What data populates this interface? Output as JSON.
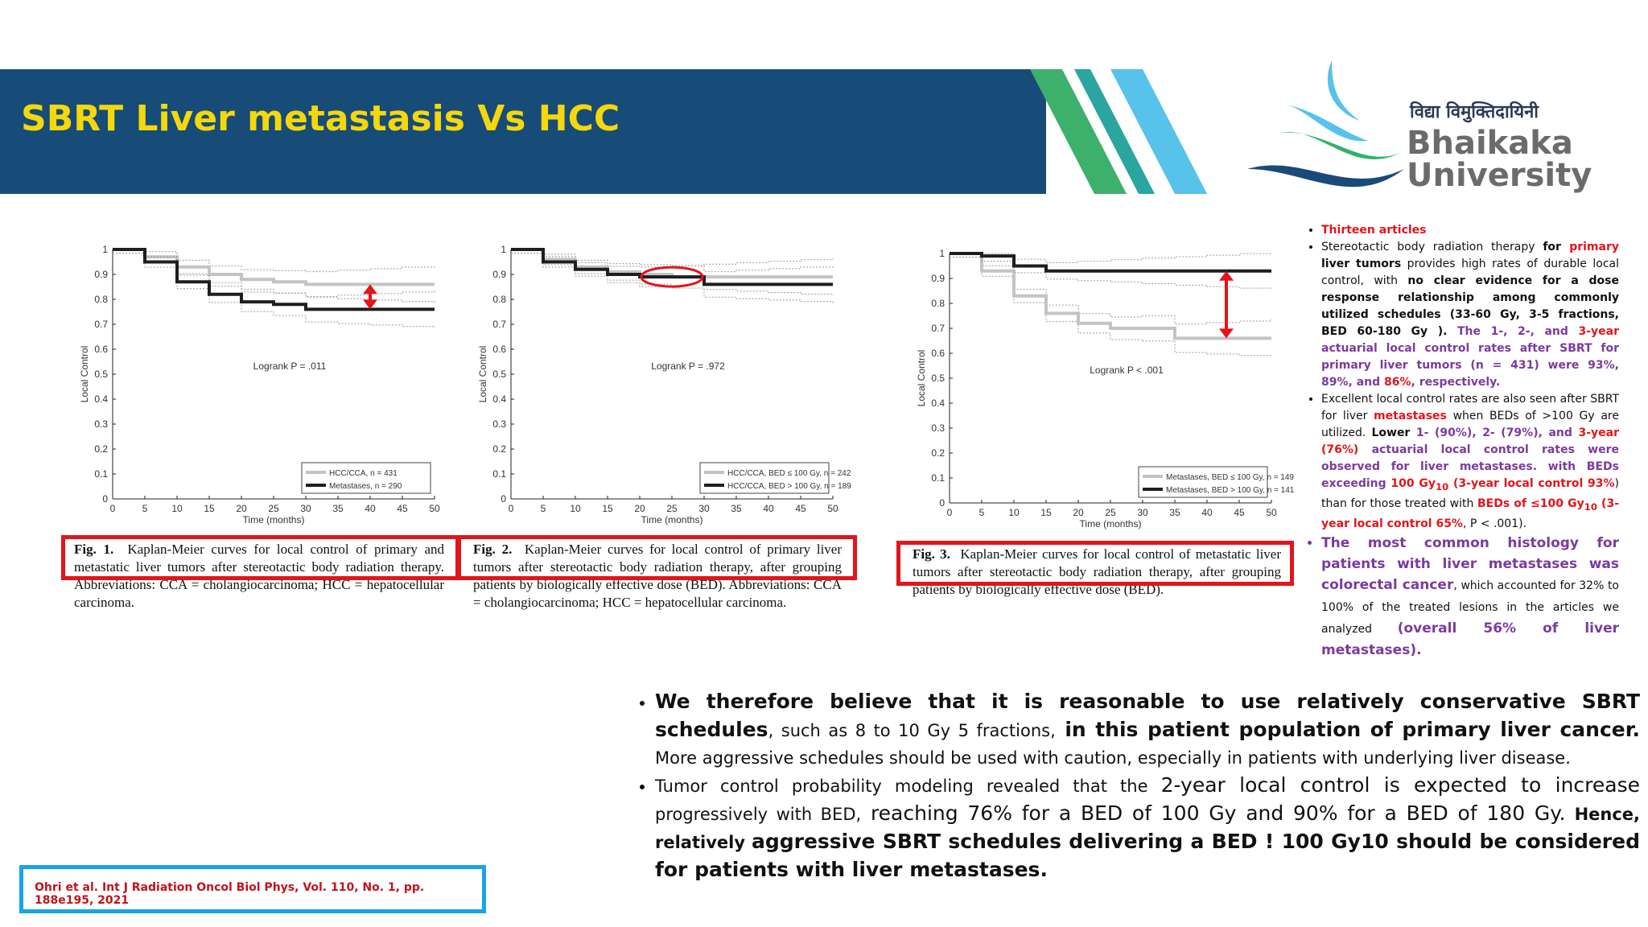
{
  "header": {
    "title": "SBRT Liver metastasis Vs HCC"
  },
  "logo": {
    "hindi_text": "विद्या विमुक्तिदायिनी",
    "name_line1": "Bhaikaka",
    "name_line2": "University"
  },
  "figures": [
    {
      "caption_label": "Fig. 1.",
      "caption_text": "Kaplan-Meier curves for local control of primary and metastatic liver tumors after stereotactic body radiation therapy. Abbreviations: CCA = cholangiocarcinoma; HCC = hepatocellular carcinoma.",
      "logrank": "Logrank P = .011",
      "legend": [
        "HCC/CCA, n = 431",
        "Metastases, n = 290"
      ]
    },
    {
      "caption_label": "Fig. 2.",
      "caption_text": "Kaplan-Meier curves for local control of primary liver tumors after stereotactic body radiation therapy, after grouping patients by biologically effective dose (BED). Abbreviations: CCA = cholangiocarcinoma; HCC = hepatocellular carcinoma.",
      "logrank": "Logrank P = .972",
      "legend": [
        "HCC/CCA, BED ≤ 100 Gy, n = 242",
        "HCC/CCA, BED > 100 Gy, n = 189"
      ]
    },
    {
      "caption_label": "Fig. 3.",
      "caption_text": "Kaplan-Meier curves for local control of metastatic liver tumors after stereotactic body radiation therapy, after grouping patients by biologically effective dose (BED).",
      "logrank": "Logrank P < .001",
      "legend": [
        "Metastases, BED ≤ 100 Gy, n = 149",
        "Metastases, BED > 100 Gy, n = 141"
      ]
    }
  ],
  "chart_data": [
    {
      "type": "line",
      "xlabel": "Time (months)",
      "ylabel": "Local Control",
      "xlim": [
        0,
        50
      ],
      "ylim": [
        0,
        1
      ],
      "x": [
        0,
        5,
        10,
        15,
        20,
        25,
        30,
        35,
        40,
        45,
        50
      ],
      "series": [
        {
          "name": "HCC/CCA, n = 431",
          "values": [
            1,
            0.97,
            0.93,
            0.9,
            0.88,
            0.87,
            0.86,
            0.86,
            0.86,
            0.86,
            0.86
          ]
        },
        {
          "name": "Metastases, n = 290",
          "values": [
            1,
            0.95,
            0.87,
            0.82,
            0.79,
            0.78,
            0.76,
            0.76,
            0.76,
            0.76,
            0.76
          ]
        }
      ]
    },
    {
      "type": "line",
      "xlabel": "Time (months)",
      "ylabel": "Local Control",
      "xlim": [
        0,
        50
      ],
      "ylim": [
        0,
        1
      ],
      "x": [
        0,
        5,
        10,
        15,
        20,
        25,
        30,
        35,
        40,
        45,
        50
      ],
      "series": [
        {
          "name": "HCC/CCA, BED ≤ 100 Gy, n = 242",
          "values": [
            1,
            0.96,
            0.93,
            0.91,
            0.9,
            0.89,
            0.89,
            0.89,
            0.89,
            0.89,
            0.89
          ]
        },
        {
          "name": "HCC/CCA, BED > 100 Gy, n = 189",
          "values": [
            1,
            0.95,
            0.92,
            0.9,
            0.89,
            0.89,
            0.86,
            0.86,
            0.86,
            0.86,
            0.86
          ]
        }
      ]
    },
    {
      "type": "line",
      "xlabel": "Time (months)",
      "ylabel": "Local Control",
      "xlim": [
        0,
        50
      ],
      "ylim": [
        0,
        1
      ],
      "x": [
        0,
        5,
        10,
        15,
        20,
        25,
        30,
        35,
        40,
        45,
        50
      ],
      "series": [
        {
          "name": "Metastases, BED ≤ 100 Gy, n = 149",
          "values": [
            1,
            0.93,
            0.83,
            0.76,
            0.72,
            0.7,
            0.7,
            0.66,
            0.66,
            0.66,
            0.66
          ]
        },
        {
          "name": "Metastases, BED > 100 Gy, n = 141",
          "values": [
            1,
            0.99,
            0.95,
            0.93,
            0.93,
            0.93,
            0.93,
            0.93,
            0.93,
            0.93,
            0.93
          ]
        }
      ]
    }
  ],
  "right_panel": {
    "b1": "Thirteen articles",
    "b2_p1": "Stereotactic body radiation therapy ",
    "b2_for": "for ",
    "b2_primary": "primary",
    "b2_p2": " liver tumors",
    "b2_p3": " provides high rates of durable local control, with ",
    "b2_p4": "no clear evidence for a dose response relationship among commonly utilized schedules (33-60 Gy, 3-5 fractions, BED 60-180 Gy ).",
    "b2_p5": " The 1-, 2-, and ",
    "b2_p6": "3-year",
    "b2_p7": " actuarial local control rates after SBRT for primary liver tumors (n = 431) were 93%, 89%, and ",
    "b2_p8": "86%",
    "b2_p9": ", respectively.",
    "b3_p1": "Excellent local control rates are also seen after SBRT for liver ",
    "b3_p2": "metastases",
    "b3_p3": " when BEDs of >100 Gy are utilized. ",
    "b3_p4": "Lower",
    "b3_p5": " 1-",
    "b3_p6": " (90%), 2- (79%), and ",
    "b3_p7": "3-year (76%)",
    "b3_p8": " actuarial local control rates were observed for liver metastases. with BEDs exceeding ",
    "b3_p9": "100 Gy",
    "b3_sub1": "10",
    "b3_p10": " (3-year local control 93%",
    "b3_p11": ") than for those treated with ",
    "b3_p12": "BEDs of ≤100 Gy",
    "b3_sub2": "10",
    "b3_p13": " (3-year local control 65%",
    "b3_p14": ", P < .001).",
    "b4_p1": "The most common histology for patients with liver metastases was colorectal cancer",
    "b4_p2": ", which accounted for 32% to 100% of the treated lesions in the articles we analyzed ",
    "b4_p3": "(overall 56% of liver metastases)."
  },
  "bottom": {
    "l1_bold": "We therefore believe that it is reasonable to use relatively conservative SBRT schedules",
    "l1_p2": ", such as 8 to 10 Gy  5 fractions,",
    "l1_bold2": " in this patient population of primary liver cancer.",
    "l1_p3": " More aggressive schedules should be used with caution, especially in patients with underlying liver disease.",
    "l2_p1": "Tumor control probability modeling revealed that the ",
    "l2_big1": "2-year local control is expected to increase",
    "l2_p2": " progressively with BED,",
    "l2_big2": " reaching 76% for a BED of 100 Gy and 90% for a BED of 180 Gy.",
    "l2_bold1": " Hence, relatively ",
    "l2_bold2": "aggressive SBRT schedules delivering a BED ! 100 Gy10 should be considered for patients with liver metastases."
  },
  "reference": "Ohri et al. Int J Radiation Oncol Biol Phys, Vol. 110, No. 1, pp. 188e195, 2021"
}
